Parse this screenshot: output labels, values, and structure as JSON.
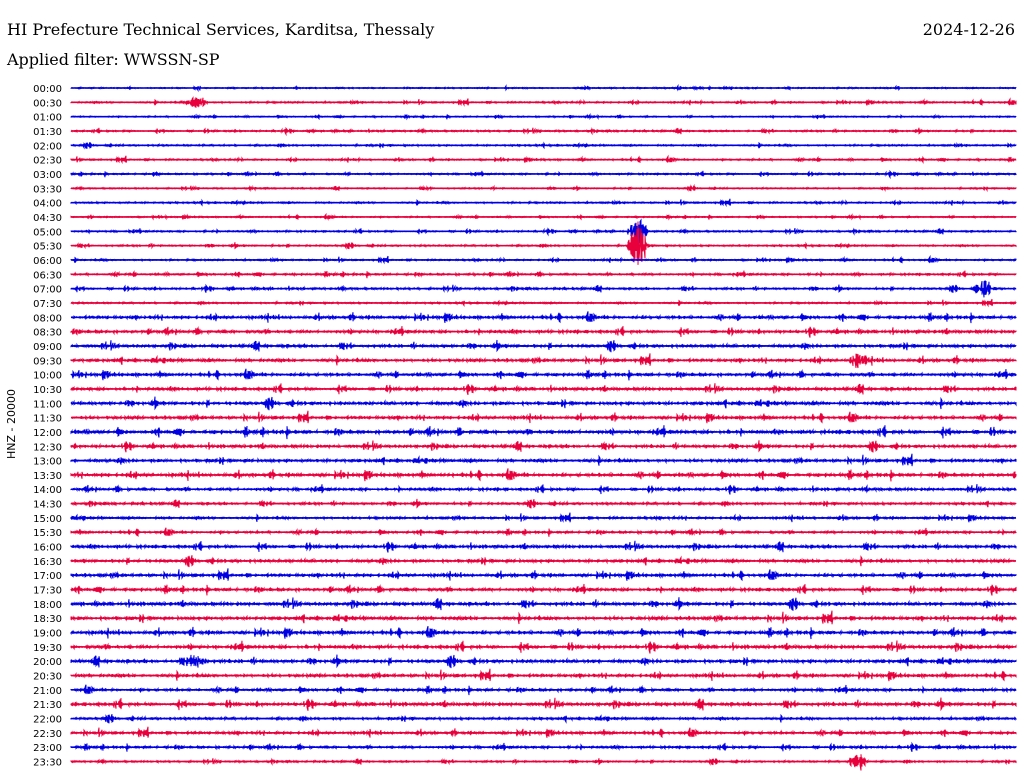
{
  "header": {
    "station": "HI Prefecture Technical Services, Karditsa, Thessaly",
    "date": "2024-12-26",
    "filter": "Applied filter: WWSSN-SP"
  },
  "chart_data": {
    "type": "line",
    "title": "HI Prefecture Technical Services, Karditsa, Thessaly",
    "ylabel": "HNZ - 20000",
    "row_labels": [
      "00:00",
      "00:30",
      "01:00",
      "01:30",
      "02:00",
      "02:30",
      "03:00",
      "03:30",
      "04:00",
      "04:30",
      "05:00",
      "05:30",
      "06:00",
      "06:30",
      "07:00",
      "07:30",
      "08:00",
      "08:30",
      "09:00",
      "09:30",
      "10:00",
      "10:30",
      "11:00",
      "11:30",
      "12:00",
      "12:30",
      "13:00",
      "13:30",
      "14:00",
      "14:30",
      "15:00",
      "15:30",
      "16:00",
      "16:30",
      "17:00",
      "17:30",
      "18:00",
      "18:30",
      "19:00",
      "19:30",
      "20:00",
      "20:30",
      "21:00",
      "21:30",
      "22:00",
      "22:30",
      "23:00",
      "23:30"
    ],
    "row_noise_level": [
      0.4,
      0.5,
      0.4,
      0.5,
      0.5,
      0.5,
      0.5,
      0.4,
      0.5,
      0.4,
      0.5,
      0.5,
      0.5,
      0.6,
      0.6,
      0.5,
      0.9,
      0.9,
      0.9,
      0.9,
      0.9,
      0.9,
      1.0,
      0.9,
      1.1,
      0.9,
      0.9,
      1.0,
      0.8,
      0.7,
      0.7,
      0.7,
      0.9,
      0.9,
      0.9,
      0.9,
      1.0,
      1.0,
      1.0,
      1.0,
      1.0,
      0.9,
      0.8,
      1.0,
      0.7,
      0.8,
      0.7,
      0.5
    ],
    "events": [
      {
        "row": "05:30",
        "minute": 18,
        "amplitude": 1.0
      },
      {
        "row": "05:00",
        "minute": 18,
        "amplitude": 0.6
      },
      {
        "row": "00:30",
        "minute": 4,
        "amplitude": 0.35
      },
      {
        "row": "07:00",
        "minute": 29,
        "amplitude": 0.35
      },
      {
        "row": "09:30",
        "minute": 25,
        "amplitude": 0.3
      },
      {
        "row": "23:30",
        "minute": 25,
        "amplitude": 0.4
      },
      {
        "row": "20:00",
        "minute": 4,
        "amplitude": 0.3
      }
    ],
    "colors": [
      "#0000e0",
      "#e8003c"
    ],
    "row_span_minutes": 30,
    "grid": false,
    "legend": "none"
  }
}
